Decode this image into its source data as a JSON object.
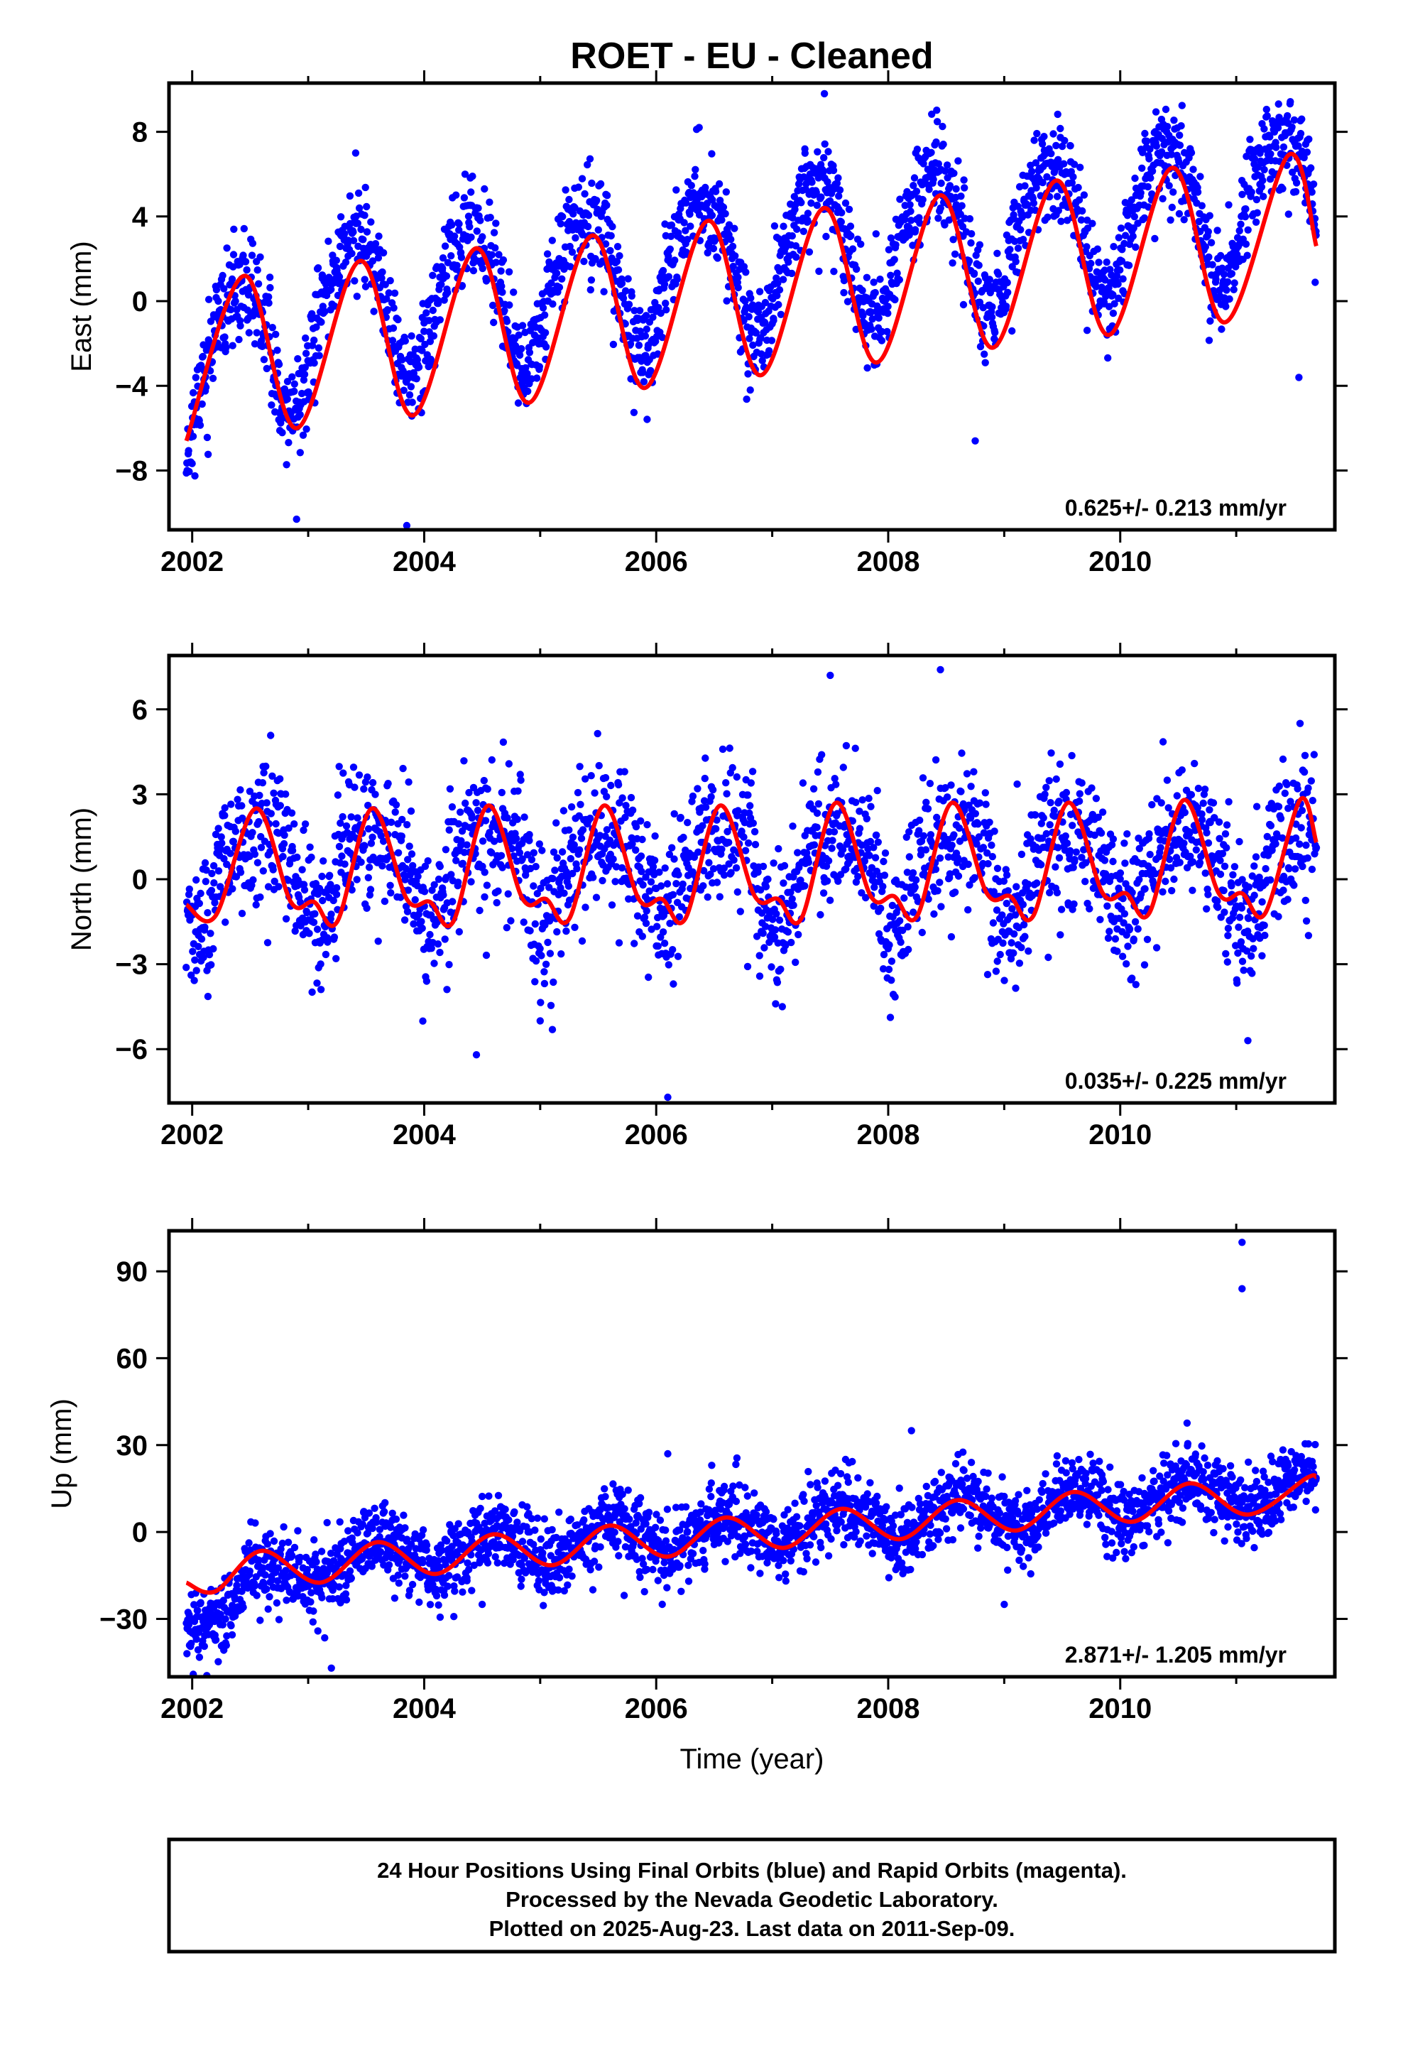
{
  "title": "ROET  - EU - Cleaned",
  "xlabel": "Time (year)",
  "footer": [
    "24 Hour Positions Using Final Orbits (blue) and Rapid Orbits (magenta).",
    "Processed by the Nevada Geodetic Laboratory.",
    "Plotted on 2025-Aug-23. Last data on 2011-Sep-09."
  ],
  "colors": {
    "points": "#0000ff",
    "fit": "#ff0000",
    "frame": "#000000"
  },
  "chart_data": [
    {
      "type": "scatter",
      "ylabel": "East (mm)",
      "rate_text": "0.625+/- 0.213 mm/yr",
      "xlim": [
        2001.8,
        2011.85
      ],
      "ylim": [
        -10.8,
        10.3
      ],
      "xticks": [
        2002,
        2004,
        2006,
        2008,
        2010
      ],
      "yticks": [
        -8,
        -4,
        0,
        4,
        8
      ],
      "ytick_labels": [
        "−8",
        "−4",
        "0",
        "4",
        "8"
      ],
      "series": [
        {
          "kind": "points",
          "seed": 11,
          "x_range": [
            2001.95,
            2011.69
          ],
          "trend": -1.0,
          "slope": 0.625,
          "annual_amp": 3.4,
          "annual_phase": 0.38,
          "semi_amp": 0.5,
          "semi_phase": 0.1,
          "early_offset": -2.8,
          "noise": 1.2,
          "n": 2400,
          "outliers": [
            [
              2002.9,
              -10.3
            ],
            [
              2003.85,
              -10.6
            ],
            [
              2007.45,
              9.8
            ],
            [
              2006.37,
              8.2
            ],
            [
              2011.54,
              -3.6
            ],
            [
              2010.4,
              8.0
            ],
            [
              2008.75,
              -6.6
            ]
          ]
        },
        {
          "kind": "fit",
          "x": [
            2001.95,
            2002.45,
            2002.9,
            2003.45,
            2003.9,
            2004.45,
            2004.9,
            2005.45,
            2005.9,
            2006.45,
            2006.9,
            2007.45,
            2007.9,
            2008.45,
            2008.9,
            2009.45,
            2009.9,
            2010.45,
            2010.9,
            2011.45,
            2011.69
          ],
          "y": [
            -6.6,
            1.2,
            -6.0,
            1.9,
            -5.4,
            2.5,
            -4.8,
            3.1,
            -4.1,
            3.8,
            -3.5,
            4.4,
            -2.9,
            5.0,
            -2.2,
            5.7,
            -1.6,
            6.3,
            -1.0,
            6.9,
            2.6
          ]
        }
      ]
    },
    {
      "type": "scatter",
      "ylabel": "North (mm)",
      "rate_text": "0.035+/- 0.225 mm/yr",
      "xlim": [
        2001.8,
        2011.85
      ],
      "ylim": [
        -7.9,
        7.9
      ],
      "xticks": [
        2002,
        2004,
        2006,
        2008,
        2010
      ],
      "yticks": [
        -6,
        -3,
        0,
        3,
        6
      ],
      "ytick_labels": [
        "−6",
        "−3",
        "0",
        "3",
        "6"
      ],
      "series": [
        {
          "kind": "points",
          "seed": 23,
          "x_range": [
            2001.95,
            2011.69
          ],
          "trend": 0.3,
          "slope": 0.035,
          "annual_amp": 1.6,
          "annual_phase": 0.55,
          "semi_amp": 0.6,
          "semi_phase": 0.3,
          "early_offset": 0.0,
          "noise": 1.25,
          "n": 2200,
          "outliers": [
            [
              2004.45,
              -6.2
            ],
            [
              2006.1,
              -7.7
            ],
            [
              2005.0,
              -5.0
            ],
            [
              2007.5,
              7.2
            ],
            [
              2008.45,
              7.4
            ],
            [
              2011.1,
              -5.7
            ],
            [
              2011.55,
              5.5
            ]
          ]
        },
        {
          "kind": "fit",
          "x": [
            2001.95,
            2002.2,
            2002.55,
            2002.85,
            2003.05,
            2003.25,
            2003.55,
            2003.85,
            2004.05,
            2004.25,
            2004.55,
            2004.85,
            2005.05,
            2005.25,
            2005.55,
            2005.85,
            2006.05,
            2006.25,
            2006.55,
            2006.85,
            2007.05,
            2007.25,
            2007.55,
            2007.85,
            2008.05,
            2008.25,
            2008.55,
            2008.85,
            2009.05,
            2009.25,
            2009.55,
            2009.85,
            2010.05,
            2010.25,
            2010.55,
            2010.85,
            2011.05,
            2011.25,
            2011.55,
            2011.69
          ],
          "y": [
            -0.9,
            -1.3,
            2.5,
            -0.8,
            -0.8,
            -1.5,
            2.5,
            -0.7,
            -0.8,
            -1.5,
            2.6,
            -0.7,
            -0.7,
            -1.4,
            2.6,
            -0.7,
            -0.7,
            -1.4,
            2.6,
            -0.6,
            -0.7,
            -1.4,
            2.7,
            -0.6,
            -0.6,
            -1.3,
            2.7,
            -0.5,
            -0.6,
            -1.3,
            2.7,
            -0.5,
            -0.5,
            -1.2,
            2.8,
            -0.5,
            -0.5,
            -1.2,
            2.8,
            1.3
          ]
        }
      ]
    },
    {
      "type": "scatter",
      "ylabel": "Up (mm)",
      "rate_text": "2.871+/- 1.205 mm/yr",
      "xlim": [
        2001.8,
        2011.85
      ],
      "ylim": [
        -50,
        104
      ],
      "xticks": [
        2002,
        2004,
        2006,
        2008,
        2010
      ],
      "yticks": [
        -30,
        0,
        30,
        60,
        90
      ],
      "ytick_labels": [
        "−30",
        "0",
        "30",
        "60",
        "90"
      ],
      "series": [
        {
          "kind": "points",
          "seed": 37,
          "x_range": [
            2001.95,
            2011.69
          ],
          "trend": -13.0,
          "slope": 2.871,
          "annual_amp": 6.5,
          "annual_phase": 0.6,
          "semi_amp": 0.0,
          "semi_phase": 0.0,
          "early_offset": -15.0,
          "noise": 6.5,
          "n": 2500,
          "outliers": [
            [
              2011.05,
              100
            ],
            [
              2011.05,
              84
            ],
            [
              2008.2,
              35
            ],
            [
              2006.1,
              27
            ],
            [
              2003.2,
              -47
            ],
            [
              2004.5,
              -25
            ],
            [
              2009.0,
              -25
            ]
          ]
        },
        {
          "kind": "fit",
          "x": [
            2001.95,
            2002.2,
            2002.6,
            2003.1,
            2003.6,
            2004.1,
            2004.6,
            2005.1,
            2005.6,
            2006.1,
            2006.6,
            2007.1,
            2007.6,
            2008.1,
            2008.6,
            2009.1,
            2009.6,
            2010.1,
            2010.6,
            2011.1,
            2011.6,
            2011.69
          ],
          "y": [
            -17.5,
            -20.5,
            -6.5,
            -17.5,
            -3.5,
            -14.5,
            -0.8,
            -11.5,
            2.2,
            -8.5,
            5.0,
            -5.5,
            8.0,
            -2.5,
            11.0,
            0.5,
            13.8,
            3.5,
            16.8,
            6.0,
            18.5,
            19.0
          ]
        }
      ]
    }
  ]
}
